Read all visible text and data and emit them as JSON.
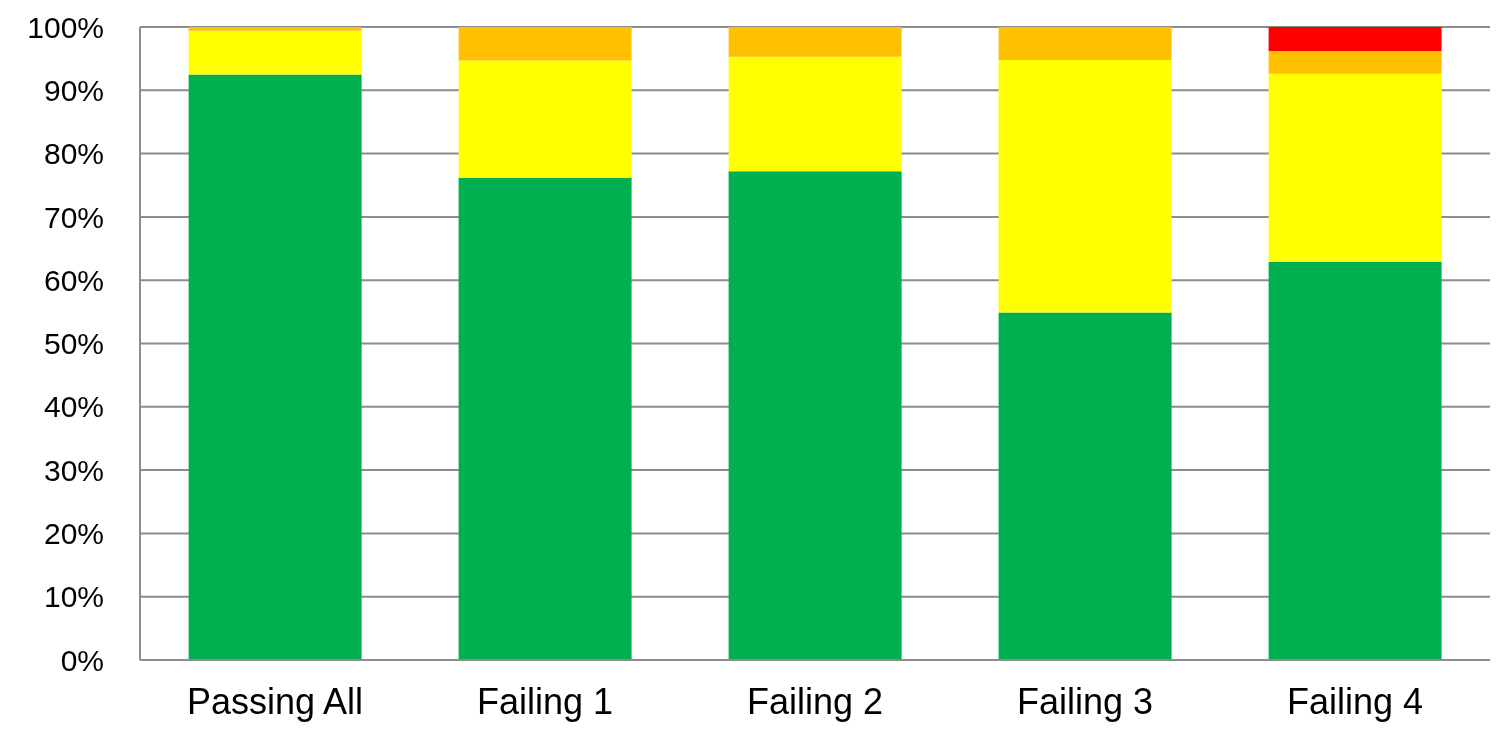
{
  "chart_data": {
    "type": "bar",
    "stacked": true,
    "categories": [
      "Passing All",
      "Failing 1",
      "Failing 2",
      "Failing 3",
      "Failing 4"
    ],
    "series": [
      {
        "color": "#00b050",
        "values": [
          92.5,
          76.2,
          77.2,
          54.9,
          62.9
        ]
      },
      {
        "color": "#ffff00",
        "values": [
          6.9,
          18.5,
          18.1,
          39.9,
          29.7
        ]
      },
      {
        "color": "#ffc000",
        "values": [
          0.6,
          5.3,
          4.7,
          5.2,
          3.6
        ]
      },
      {
        "color": "#ff0000",
        "values": [
          0,
          0,
          0,
          0,
          3.8
        ]
      }
    ],
    "ylim": [
      0,
      100
    ],
    "yticks": [
      {
        "value": 0,
        "label": "0%"
      },
      {
        "value": 10,
        "label": "10%"
      },
      {
        "value": 20,
        "label": "20%"
      },
      {
        "value": 30,
        "label": "30%"
      },
      {
        "value": 40,
        "label": "40%"
      },
      {
        "value": 50,
        "label": "50%"
      },
      {
        "value": 60,
        "label": "60%"
      },
      {
        "value": 70,
        "label": "70%"
      },
      {
        "value": 80,
        "label": "80%"
      },
      {
        "value": 90,
        "label": "90%"
      },
      {
        "value": 100,
        "label": "100%"
      }
    ],
    "grid": "y"
  }
}
